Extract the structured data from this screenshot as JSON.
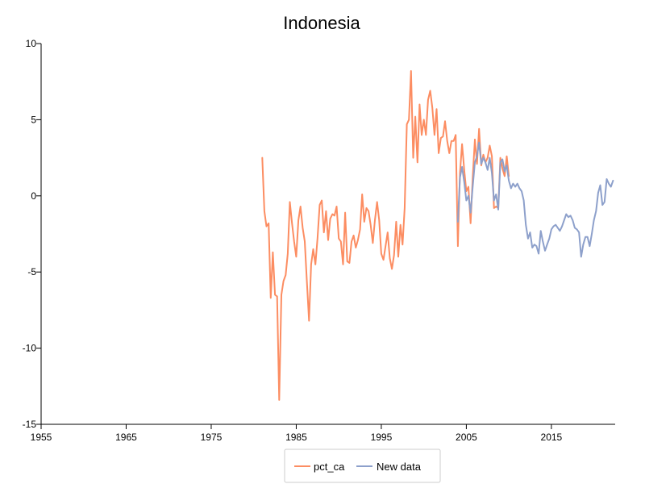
{
  "chart_data": {
    "type": "line",
    "title": "Indonesia",
    "xlabel": "",
    "ylabel": "",
    "xlim": [
      1955,
      2022.5
    ],
    "ylim": [
      -15,
      10
    ],
    "x_ticks": [
      1955,
      1965,
      1975,
      1985,
      1995,
      2005,
      2015
    ],
    "y_ticks": [
      10,
      5,
      0,
      -5,
      -10,
      -15
    ],
    "grid": false,
    "legend": "bottom-center",
    "series": [
      {
        "name": "pct_ca",
        "color": "#fc8d62",
        "x": [
          1981.0,
          1981.25,
          1981.5,
          1981.75,
          1982.0,
          1982.25,
          1982.5,
          1982.75,
          1983.0,
          1983.25,
          1983.5,
          1983.75,
          1984.0,
          1984.25,
          1984.5,
          1984.75,
          1985.0,
          1985.25,
          1985.5,
          1985.75,
          1986.0,
          1986.25,
          1986.5,
          1986.75,
          1987.0,
          1987.25,
          1987.5,
          1987.75,
          1988.0,
          1988.25,
          1988.5,
          1988.75,
          1989.0,
          1989.25,
          1989.5,
          1989.75,
          1990.0,
          1990.25,
          1990.5,
          1990.75,
          1991.0,
          1991.25,
          1991.5,
          1991.75,
          1992.0,
          1992.25,
          1992.5,
          1992.75,
          1993.0,
          1993.25,
          1993.5,
          1993.75,
          1994.0,
          1994.25,
          1994.5,
          1994.75,
          1995.0,
          1995.25,
          1995.5,
          1995.75,
          1996.0,
          1996.25,
          1996.5,
          1996.75,
          1997.0,
          1997.25,
          1997.5,
          1997.75,
          1998.0,
          1998.25,
          1998.5,
          1998.75,
          1999.0,
          1999.25,
          1999.5,
          1999.75,
          2000.0,
          2000.25,
          2000.5,
          2000.75,
          2001.0,
          2001.25,
          2001.5,
          2001.75,
          2002.0,
          2002.25,
          2002.5,
          2002.75,
          2003.0,
          2003.25,
          2003.5,
          2003.75,
          2004.0,
          2004.25,
          2004.5,
          2004.75,
          2005.0,
          2005.25,
          2005.5,
          2005.75,
          2006.0,
          2006.25,
          2006.5,
          2006.75,
          2007.0,
          2007.25,
          2007.5,
          2007.75,
          2008.0,
          2008.25,
          2008.5,
          2008.75,
          2009.0,
          2009.25,
          2009.5,
          2009.75,
          2010.0
        ],
        "y": [
          2.5,
          -1.0,
          -2.0,
          -1.8,
          -6.7,
          -3.7,
          -6.5,
          -6.6,
          -13.4,
          -6.5,
          -5.6,
          -5.2,
          -3.8,
          -0.4,
          -1.8,
          -3.0,
          -4.0,
          -1.6,
          -0.7,
          -2.1,
          -3.0,
          -5.6,
          -8.2,
          -4.5,
          -3.5,
          -4.5,
          -2.8,
          -0.6,
          -0.3,
          -2.4,
          -1.0,
          -2.9,
          -1.5,
          -1.2,
          -1.3,
          -0.7,
          -2.8,
          -3.0,
          -4.5,
          -1.1,
          -4.3,
          -4.4,
          -3.0,
          -2.6,
          -3.4,
          -2.9,
          -2.2,
          0.1,
          -1.7,
          -0.8,
          -1.0,
          -1.9,
          -3.1,
          -1.6,
          -0.4,
          -1.6,
          -3.8,
          -4.2,
          -3.3,
          -2.4,
          -4.1,
          -4.8,
          -3.9,
          -1.7,
          -4.0,
          -1.9,
          -3.2,
          -0.8,
          4.7,
          5.0,
          8.2,
          2.5,
          5.2,
          2.2,
          6.0,
          4.0,
          5.0,
          4.0,
          6.3,
          6.9,
          5.8,
          4.0,
          5.7,
          2.8,
          3.8,
          3.9,
          4.9,
          3.6,
          2.8,
          3.6,
          3.6,
          4.0,
          -3.3,
          1.5,
          3.4,
          1.7,
          0.3,
          0.6,
          -1.8,
          1.2,
          3.7,
          2.1,
          4.4,
          2.0,
          2.7,
          2.2,
          2.5,
          3.3,
          2.6,
          -0.8,
          -0.7,
          -0.8,
          2.5,
          1.8,
          1.3,
          2.6,
          1.3
        ]
      },
      {
        "name": "New data",
        "color": "#8da0cb",
        "x": [
          2004.0,
          2004.25,
          2004.5,
          2004.75,
          2005.0,
          2005.25,
          2005.5,
          2005.75,
          2006.0,
          2006.25,
          2006.5,
          2006.75,
          2007.0,
          2007.25,
          2007.5,
          2007.75,
          2008.0,
          2008.25,
          2008.5,
          2008.75,
          2009.0,
          2009.25,
          2009.5,
          2009.75,
          2010.0,
          2010.25,
          2010.5,
          2010.75,
          2011.0,
          2011.25,
          2011.5,
          2011.75,
          2012.0,
          2012.25,
          2012.5,
          2012.75,
          2013.0,
          2013.25,
          2013.5,
          2013.75,
          2014.0,
          2014.25,
          2014.5,
          2014.75,
          2015.0,
          2015.25,
          2015.5,
          2015.75,
          2016.0,
          2016.25,
          2016.5,
          2016.75,
          2017.0,
          2017.25,
          2017.5,
          2017.75,
          2018.0,
          2018.25,
          2018.5,
          2018.75,
          2019.0,
          2019.25,
          2019.5,
          2019.75,
          2020.0,
          2020.25,
          2020.5,
          2020.75,
          2021.0,
          2021.25,
          2021.5,
          2021.75,
          2022.0,
          2022.25
        ],
        "y": [
          -1.7,
          1.2,
          1.9,
          0.9,
          -0.3,
          0.0,
          -1.1,
          0.6,
          2.2,
          2.6,
          3.5,
          2.1,
          2.5,
          2.2,
          1.7,
          2.5,
          1.5,
          -0.3,
          0.1,
          -0.9,
          2.2,
          2.4,
          1.6,
          2.0,
          1.0,
          0.5,
          0.8,
          0.6,
          0.8,
          0.5,
          0.3,
          -0.3,
          -1.9,
          -2.8,
          -2.4,
          -3.4,
          -3.2,
          -3.3,
          -3.8,
          -2.3,
          -3.0,
          -3.6,
          -3.2,
          -2.8,
          -2.2,
          -2.0,
          -1.9,
          -2.1,
          -2.3,
          -2.0,
          -1.6,
          -1.2,
          -1.4,
          -1.3,
          -1.6,
          -2.1,
          -2.2,
          -2.4,
          -4.0,
          -3.2,
          -2.7,
          -2.7,
          -3.3,
          -2.5,
          -1.6,
          -1.0,
          0.2,
          0.7,
          -0.6,
          -0.4,
          1.1,
          0.8,
          0.6,
          1.0
        ]
      }
    ]
  }
}
